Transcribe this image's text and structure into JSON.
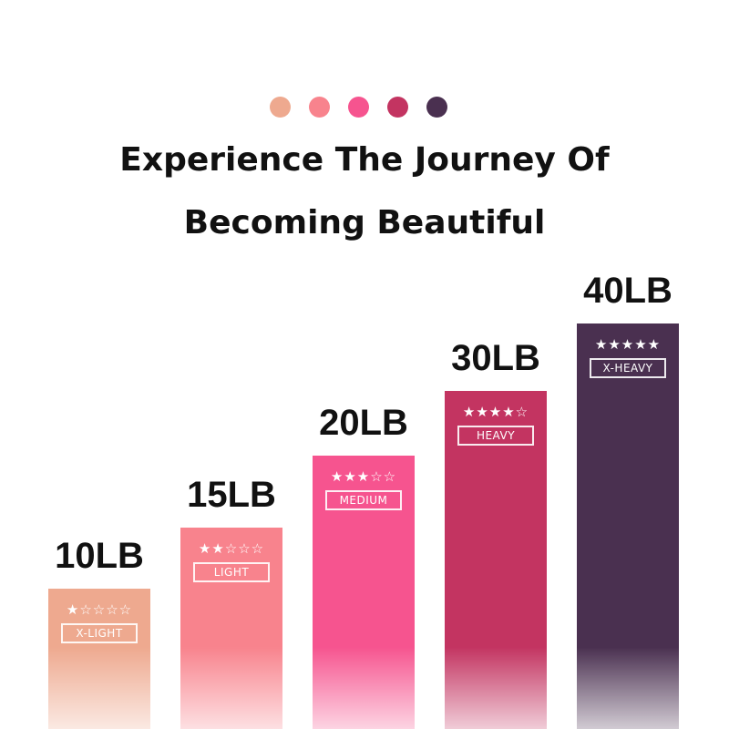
{
  "dots": [
    "#eea98f",
    "#f8838d",
    "#f6548f",
    "#c33461",
    "#4a3050"
  ],
  "title_line1": "Experience The Journey Of",
  "title_line2": "Becoming Beautiful",
  "bands": [
    {
      "weight": "10LB",
      "level": "X-LIGHT",
      "stars": "★☆☆☆☆",
      "rating": 1,
      "color": "#eea98f"
    },
    {
      "weight": "15LB",
      "level": "LIGHT",
      "stars": "★★☆☆☆",
      "rating": 2,
      "color": "#f8838d"
    },
    {
      "weight": "20LB",
      "level": "MEDIUM",
      "stars": "★★★☆☆",
      "rating": 3,
      "color": "#f6548f"
    },
    {
      "weight": "30LB",
      "level": "HEAVY",
      "stars": "★★★★☆",
      "rating": 4,
      "color": "#c33461"
    },
    {
      "weight": "40LB",
      "level": "X-HEAVY",
      "stars": "★★★★★",
      "rating": 5,
      "color": "#4a3050"
    }
  ]
}
